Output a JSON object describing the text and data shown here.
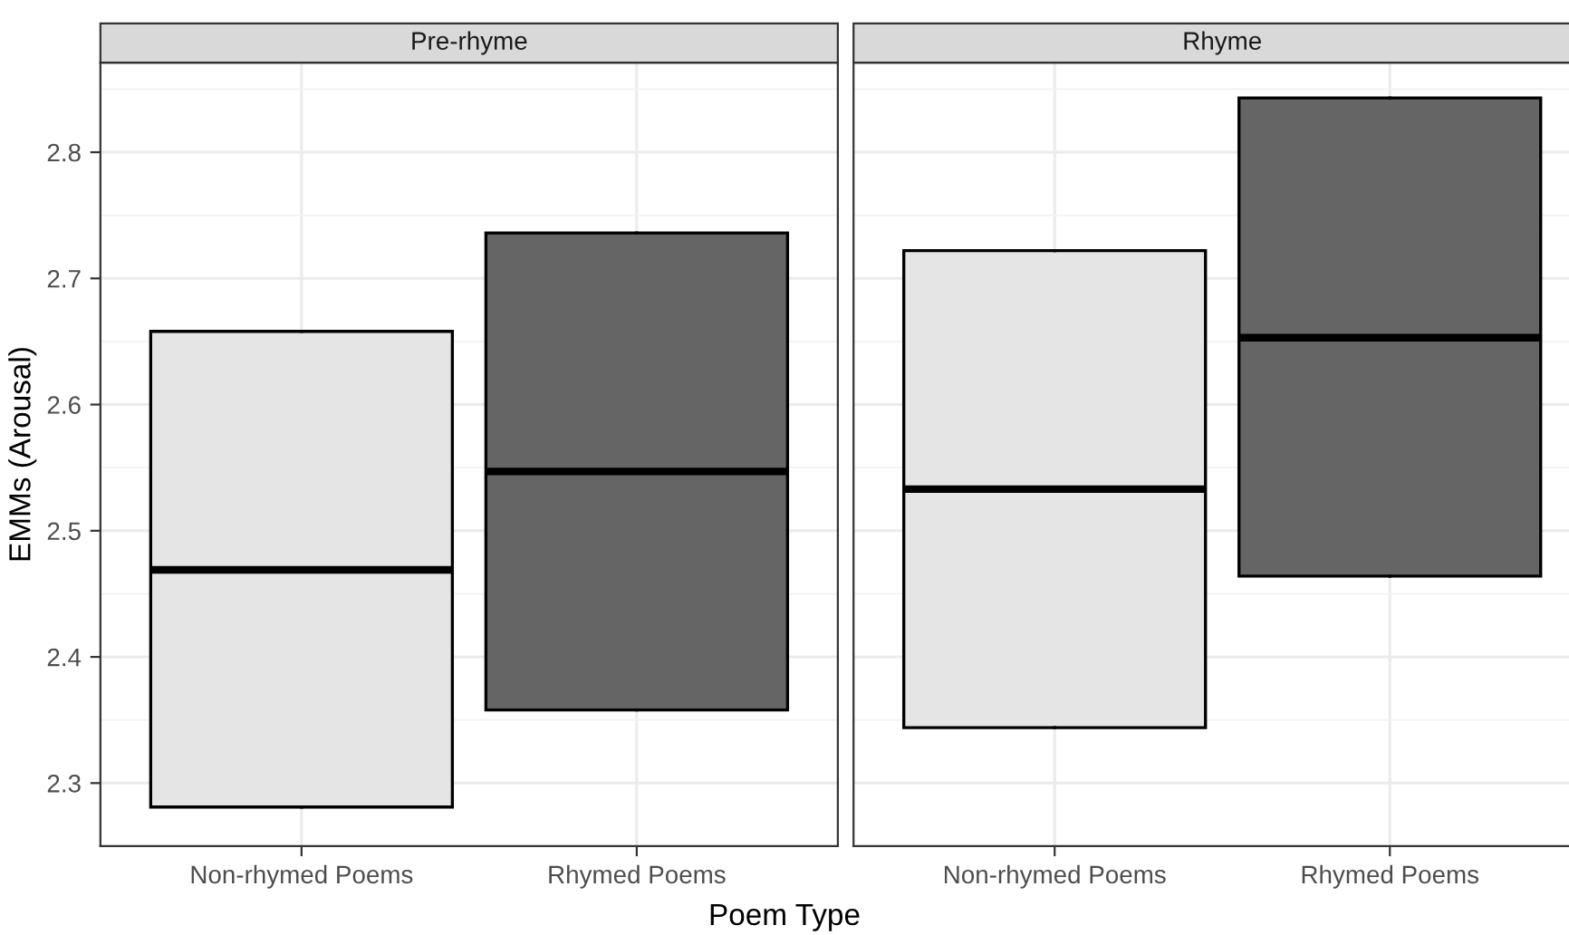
{
  "chart_data": [
    {
      "type": "box",
      "title": "Pre-rhyme",
      "ylabel": "EMMs (Arousal)",
      "xlabel": "Poem Type",
      "categories": [
        "Non-rhymed Poems",
        "Rhymed Poems"
      ],
      "colors": [
        "#e5e5e5",
        "#656565"
      ],
      "boxes": [
        {
          "low": 2.281,
          "q1": 2.281,
          "median": 2.469,
          "q3": 2.658,
          "high": 2.658
        },
        {
          "low": 2.358,
          "q1": 2.358,
          "median": 2.547,
          "q3": 2.736,
          "high": 2.736
        }
      ],
      "ylim": [
        2.253,
        2.871
      ],
      "yticks": [
        2.3,
        2.4,
        2.5,
        2.6,
        2.7,
        2.8
      ],
      "grid": true
    },
    {
      "type": "box",
      "title": "Rhyme",
      "categories": [
        "Non-rhymed Poems",
        "Rhymed Poems"
      ],
      "colors": [
        "#e5e5e5",
        "#656565"
      ],
      "boxes": [
        {
          "low": 2.344,
          "q1": 2.344,
          "median": 2.533,
          "q3": 2.722,
          "high": 2.722
        },
        {
          "low": 2.464,
          "q1": 2.464,
          "median": 2.653,
          "q3": 2.843,
          "high": 2.843
        }
      ],
      "ylim": [
        2.253,
        2.871
      ],
      "yticks": [
        2.3,
        2.4,
        2.5,
        2.6,
        2.7,
        2.8
      ],
      "grid": true,
      "tick_labels": "x"
    }
  ]
}
